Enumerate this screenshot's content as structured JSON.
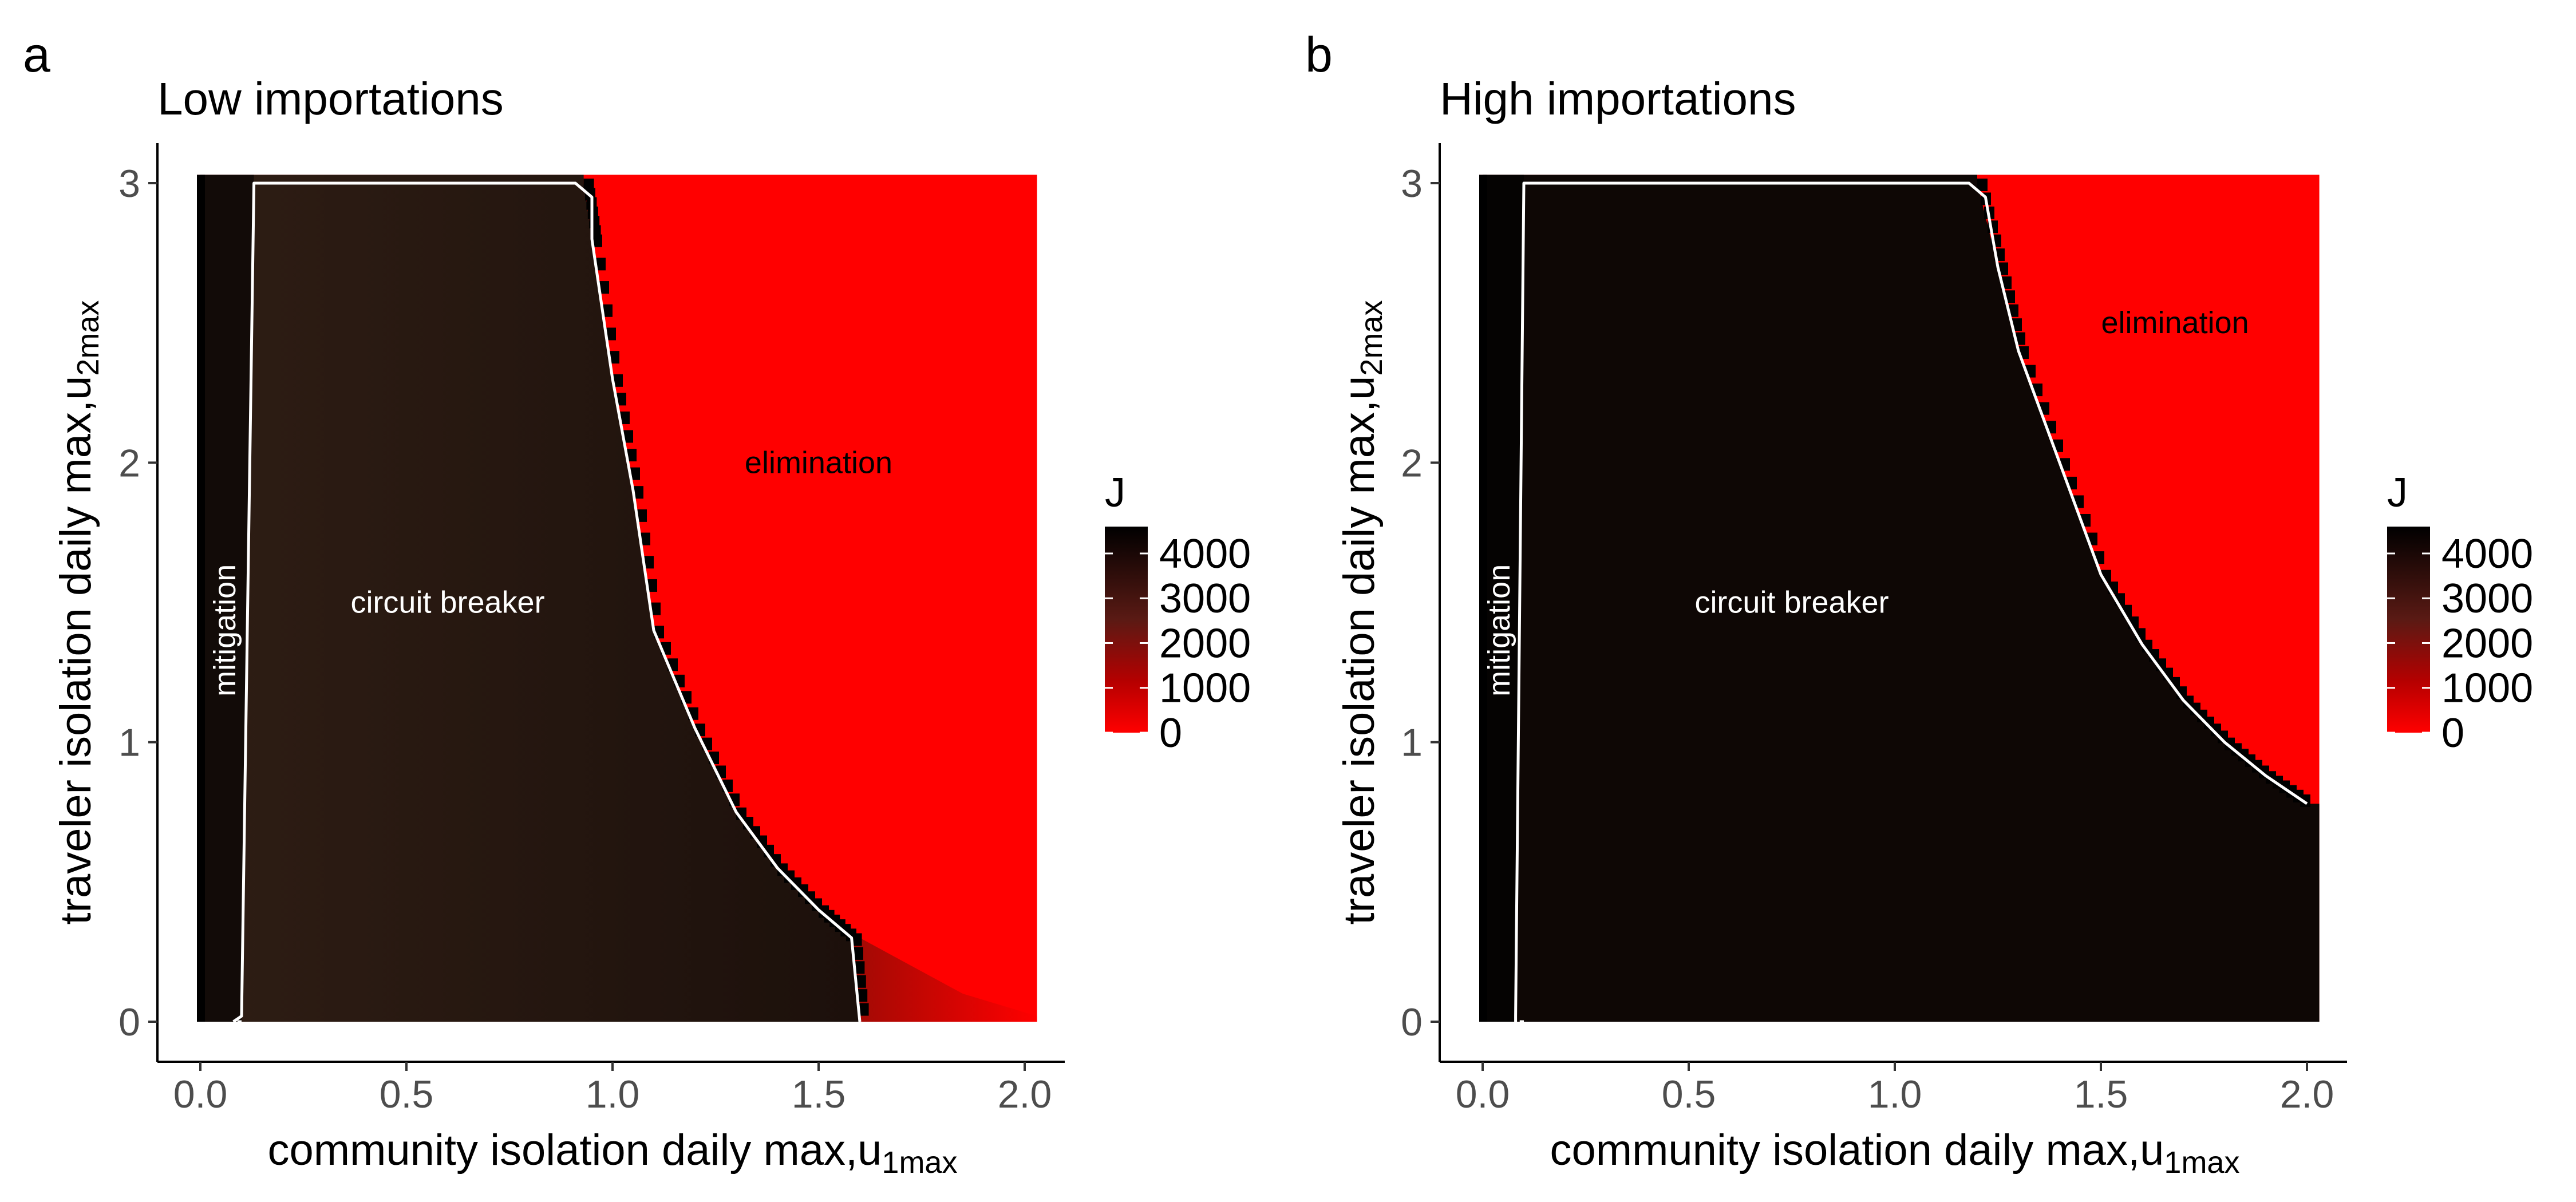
{
  "chart_data": [
    {
      "type": "heatmap",
      "panel_label": "a",
      "title": "Low importations",
      "xlabel": "community isolation daily max,u",
      "xlabel_sub": "1max",
      "ylabel": "traveler isolation daily max,u",
      "ylabel_sub": "2max",
      "x_range": [
        0,
        2
      ],
      "y_range": [
        0,
        3
      ],
      "x_ticks": [
        "0.0",
        "0.5",
        "1.0",
        "1.5",
        "2.0"
      ],
      "y_ticks": [
        "0",
        "1",
        "2",
        "3"
      ],
      "legend": {
        "title": "J",
        "labels": [
          "4000",
          "3000",
          "2000",
          "1000",
          "0"
        ],
        "values": [
          4000,
          3000,
          2000,
          1000,
          0
        ],
        "range": [
          0,
          4600
        ],
        "placement": "right"
      },
      "colors": {
        "low": "#ff0000",
        "high": "#000000",
        "mitigation_fill": "#120b08",
        "breaker_fill": "#2a1a12",
        "contour": "#ffffff"
      },
      "regions": [
        {
          "label": "mitigation",
          "x_range": [
            0,
            0.1
          ],
          "label_x": 0.06,
          "label_y": 1.4,
          "rotated": true,
          "label_color": "#ffffff"
        },
        {
          "label": "circuit breaker",
          "label_x": 0.6,
          "label_y": 1.5,
          "label_color": "#ffffff"
        },
        {
          "label": "elimination",
          "label_x": 1.5,
          "label_y": 2.0,
          "label_color": "#000000"
        }
      ],
      "mitigation_boundary": [
        [
          0.0,
          0.0
        ],
        [
          0.1,
          0.0
        ],
        [
          0.13,
          3.0
        ]
      ],
      "elimination_boundary": [
        [
          0.93,
          3.0
        ],
        [
          0.95,
          2.8
        ],
        [
          1.0,
          2.3
        ],
        [
          1.05,
          1.9
        ],
        [
          1.1,
          1.4
        ],
        [
          1.2,
          1.05
        ],
        [
          1.3,
          0.75
        ],
        [
          1.4,
          0.55
        ],
        [
          1.5,
          0.4
        ],
        [
          1.58,
          0.3
        ],
        [
          1.6,
          0.0
        ]
      ]
    },
    {
      "type": "heatmap",
      "panel_label": "b",
      "title": "High importations",
      "xlabel": "community isolation daily max,u",
      "xlabel_sub": "1max",
      "ylabel": "traveler isolation daily max,u",
      "ylabel_sub": "2max",
      "x_range": [
        0,
        2
      ],
      "y_range": [
        0,
        3
      ],
      "x_ticks": [
        "0.0",
        "0.5",
        "1.0",
        "1.5",
        "2.0"
      ],
      "y_ticks": [
        "0",
        "1",
        "2",
        "3"
      ],
      "legend": {
        "title": "J",
        "labels": [
          "4000",
          "3000",
          "2000",
          "1000",
          "0"
        ],
        "values": [
          4000,
          3000,
          2000,
          1000,
          0
        ],
        "range": [
          0,
          4600
        ],
        "placement": "right"
      },
      "colors": {
        "low": "#ff0000",
        "high": "#000000",
        "mitigation_fill": "#050302",
        "breaker_fill": "#0e0705",
        "contour": "#ffffff"
      },
      "regions": [
        {
          "label": "mitigation",
          "x_range": [
            0,
            0.08
          ],
          "label_x": 0.04,
          "label_y": 1.4,
          "rotated": true,
          "label_color": "#ffffff"
        },
        {
          "label": "circuit breaker",
          "label_x": 0.75,
          "label_y": 1.5,
          "label_color": "#ffffff"
        },
        {
          "label": "elimination",
          "label_x": 1.68,
          "label_y": 2.5,
          "label_color": "#000000"
        }
      ],
      "mitigation_boundary": [
        [
          0.0,
          0.0
        ],
        [
          0.08,
          0.0
        ],
        [
          0.1,
          3.0
        ]
      ],
      "elimination_boundary": [
        [
          1.2,
          3.0
        ],
        [
          1.25,
          2.7
        ],
        [
          1.3,
          2.4
        ],
        [
          1.4,
          2.0
        ],
        [
          1.5,
          1.6
        ],
        [
          1.6,
          1.35
        ],
        [
          1.7,
          1.15
        ],
        [
          1.8,
          1.0
        ],
        [
          1.9,
          0.88
        ],
        [
          2.0,
          0.78
        ]
      ]
    }
  ]
}
